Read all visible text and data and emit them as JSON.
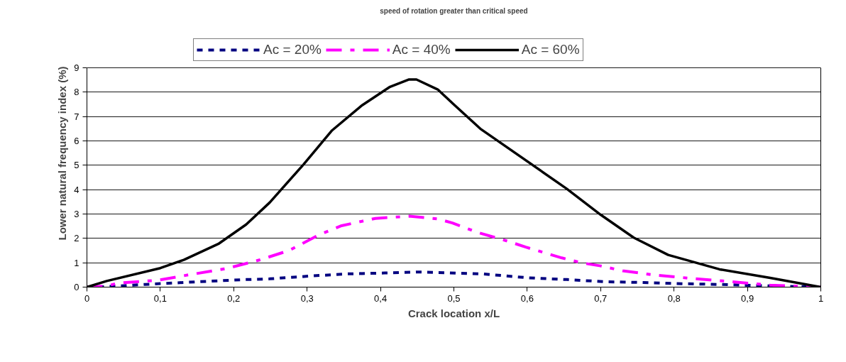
{
  "chart_data": {
    "type": "line",
    "title": "speed of rotation greater than critical speed",
    "xlabel": "Crack location x/L",
    "ylabel": "Lower natural frequency index (%)",
    "xlim": [
      0,
      1
    ],
    "ylim": [
      0,
      9
    ],
    "xticks": [
      0,
      {
        "value": 0.1,
        "label": "0,1"
      },
      {
        "value": 0.2,
        "label": "0,2"
      },
      {
        "value": 0.3,
        "label": "0,3"
      },
      {
        "value": 0.4,
        "label": "0,4"
      },
      {
        "value": 0.5,
        "label": "0,5"
      },
      {
        "value": 0.6,
        "label": "0,6"
      },
      {
        "value": 0.7,
        "label": "0,7"
      },
      {
        "value": 0.8,
        "label": "0,8"
      },
      {
        "value": 0.9,
        "label": "0,9"
      },
      1
    ],
    "yticks": [
      0,
      1,
      2,
      3,
      4,
      5,
      6,
      7,
      8,
      9
    ],
    "grid": "y",
    "legend": "top",
    "marker": "none",
    "series": [
      {
        "name": "Ac = 20%",
        "color": "#000080",
        "line_style": "dashed",
        "x": [
          0,
          0.027,
          0.079,
          0.151,
          0.217,
          0.249,
          0.302,
          0.351,
          0.406,
          0.452,
          0.488,
          0.54,
          0.602,
          0.654,
          0.706,
          0.758,
          0.81,
          0.862,
          0.931,
          1
        ],
        "values": [
          0,
          0.02,
          0.11,
          0.22,
          0.31,
          0.34,
          0.45,
          0.54,
          0.58,
          0.62,
          0.59,
          0.54,
          0.38,
          0.31,
          0.22,
          0.19,
          0.14,
          0.11,
          0.05,
          0
        ]
      },
      {
        "name": "Ac = 40%",
        "color": "#ff00ff",
        "line_style": "dashdot",
        "x": [
          0,
          0.027,
          0.043,
          0.096,
          0.138,
          0.19,
          0.236,
          0.276,
          0.315,
          0.347,
          0.393,
          0.439,
          0.478,
          0.498,
          0.533,
          0.574,
          0.598,
          0.647,
          0.675,
          0.7,
          0.73,
          0.775,
          0.827,
          0.872,
          0.931,
          1
        ],
        "values": [
          0,
          0.05,
          0.17,
          0.28,
          0.5,
          0.76,
          1.12,
          1.51,
          2.13,
          2.52,
          2.82,
          2.91,
          2.8,
          2.63,
          2.24,
          1.88,
          1.64,
          1.2,
          0.99,
          0.87,
          0.67,
          0.49,
          0.35,
          0.24,
          0.08,
          0
        ]
      },
      {
        "name": "Ac = 60%",
        "color": "#000000",
        "line_style": "solid",
        "x": [
          0,
          0.027,
          0.1,
          0.132,
          0.18,
          0.217,
          0.249,
          0.295,
          0.334,
          0.374,
          0.413,
          0.439,
          0.449,
          0.478,
          0.5,
          0.536,
          0.654,
          0.7,
          0.745,
          0.792,
          0.862,
          0.931,
          1
        ],
        "values": [
          0,
          0.25,
          0.78,
          1.12,
          1.79,
          2.57,
          3.47,
          5.03,
          6.43,
          7.44,
          8.22,
          8.52,
          8.52,
          8.11,
          7.49,
          6.5,
          4.03,
          2.97,
          2.03,
          1.32,
          0.73,
          0.38,
          0
        ]
      }
    ]
  }
}
